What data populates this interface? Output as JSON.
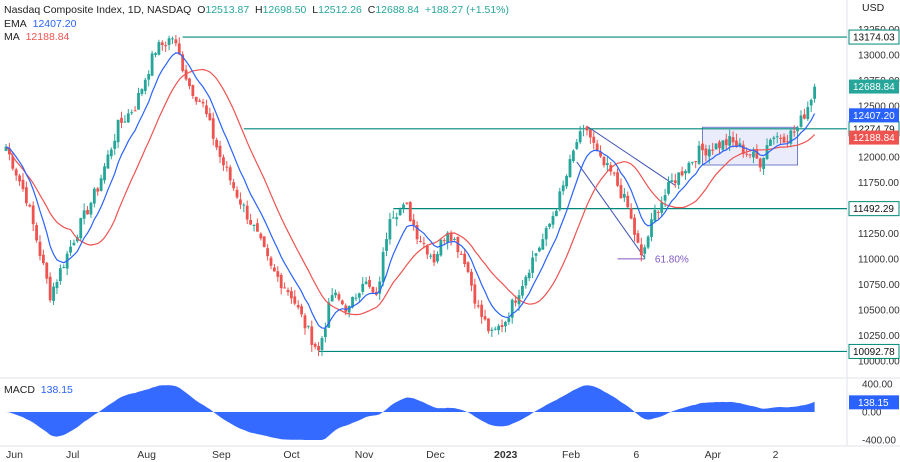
{
  "header": {
    "title": "Nasdaq Composite Index, 1D, NASDAQ",
    "o_label": "O",
    "o_value": "12513.87",
    "h_label": "H",
    "h_value": "12698.50",
    "l_label": "L",
    "l_value": "12512.26",
    "c_label": "C",
    "c_value": "12688.84",
    "change": "+188.27 (+1.51%)",
    "ema_label": "EMA",
    "ema_value": "12407.20",
    "ma_label": "MA",
    "ma_value": "12188.84",
    "currency": "USD"
  },
  "chart_data": {
    "type": "candlestick",
    "ylim": [
      9950,
      13400
    ],
    "yticks": [
      "13250.00",
      "13000.00",
      "12750.00",
      "12500.00",
      "12250.00",
      "12000.00",
      "11750.00",
      "11500.00",
      "11250.00",
      "11000.00",
      "10750.00",
      "10500.00",
      "10250.00",
      "10000.00"
    ],
    "ytick_values": [
      13250,
      13000,
      12750,
      12500,
      12250,
      12000,
      11750,
      11500,
      11250,
      11000,
      10750,
      10500,
      10250,
      10000
    ],
    "xlabels": [
      {
        "text": "Jun",
        "i": 0
      },
      {
        "text": "Jul",
        "i": 20
      },
      {
        "text": "Aug",
        "i": 41
      },
      {
        "text": "Sep",
        "i": 63
      },
      {
        "text": "Oct",
        "i": 84
      },
      {
        "text": "Nov",
        "i": 105
      },
      {
        "text": "Dec",
        "i": 126
      },
      {
        "text": "2023",
        "i": 146
      },
      {
        "text": "Feb",
        "i": 166
      },
      {
        "text": "6",
        "i": 187
      },
      {
        "text": "Apr",
        "i": 208
      },
      {
        "text": "2",
        "i": 228
      }
    ],
    "anchors": [
      [
        0,
        12100
      ],
      [
        6,
        11600
      ],
      [
        13,
        10650
      ],
      [
        20,
        11200
      ],
      [
        27,
        11700
      ],
      [
        33,
        12300
      ],
      [
        38,
        12500
      ],
      [
        44,
        13050
      ],
      [
        49,
        13174
      ],
      [
        54,
        12700
      ],
      [
        58,
        12500
      ],
      [
        63,
        12000
      ],
      [
        67,
        11700
      ],
      [
        73,
        11300
      ],
      [
        78,
        10900
      ],
      [
        84,
        10650
      ],
      [
        88,
        10350
      ],
      [
        92,
        10092
      ],
      [
        96,
        10650
      ],
      [
        101,
        10500
      ],
      [
        105,
        10800
      ],
      [
        109,
        10600
      ],
      [
        113,
        11450
      ],
      [
        118,
        11500
      ],
      [
        121,
        11250
      ],
      [
        126,
        11000
      ],
      [
        130,
        11300
      ],
      [
        135,
        11000
      ],
      [
        139,
        10500
      ],
      [
        143,
        10250
      ],
      [
        147,
        10400
      ],
      [
        151,
        10700
      ],
      [
        155,
        11000
      ],
      [
        159,
        11250
      ],
      [
        164,
        11700
      ],
      [
        168,
        12150
      ],
      [
        171,
        12270
      ],
      [
        175,
        11950
      ],
      [
        179,
        11800
      ],
      [
        183,
        11500
      ],
      [
        187,
        11000
      ],
      [
        191,
        11450
      ],
      [
        196,
        11750
      ],
      [
        200,
        11900
      ],
      [
        204,
        12050
      ],
      [
        208,
        12100
      ],
      [
        213,
        12150
      ],
      [
        218,
        12050
      ],
      [
        222,
        11950
      ],
      [
        225,
        12200
      ],
      [
        230,
        12200
      ],
      [
        233,
        12280
      ],
      [
        236,
        12500
      ],
      [
        238,
        12688
      ]
    ],
    "levels": [
      {
        "value": 13174.03,
        "label": "13174.03",
        "from": 52
      },
      {
        "value": 12274.79,
        "label": "12274.79",
        "from": 70
      },
      {
        "value": 11492.29,
        "label": "11492.29",
        "from": 114
      },
      {
        "value": 10092.78,
        "label": "10092.78",
        "from": 92
      }
    ],
    "price_tags": [
      {
        "value": 12688.84,
        "label": "12688.84",
        "color": "#26a69a"
      },
      {
        "value": 12407.2,
        "label": "12407.20",
        "color": "#2962ff"
      },
      {
        "value": 12188.84,
        "label": "12188.84",
        "color": "#ef5350"
      }
    ],
    "fib_label": "61.80%",
    "fib_level": 11000,
    "macd": {
      "label": "MACD",
      "value": "138.15",
      "ylim": [
        -400,
        400
      ],
      "ticks": [
        "400.00",
        "0.00",
        "-400.00"
      ],
      "tick_values": [
        400,
        0,
        -400
      ]
    }
  }
}
